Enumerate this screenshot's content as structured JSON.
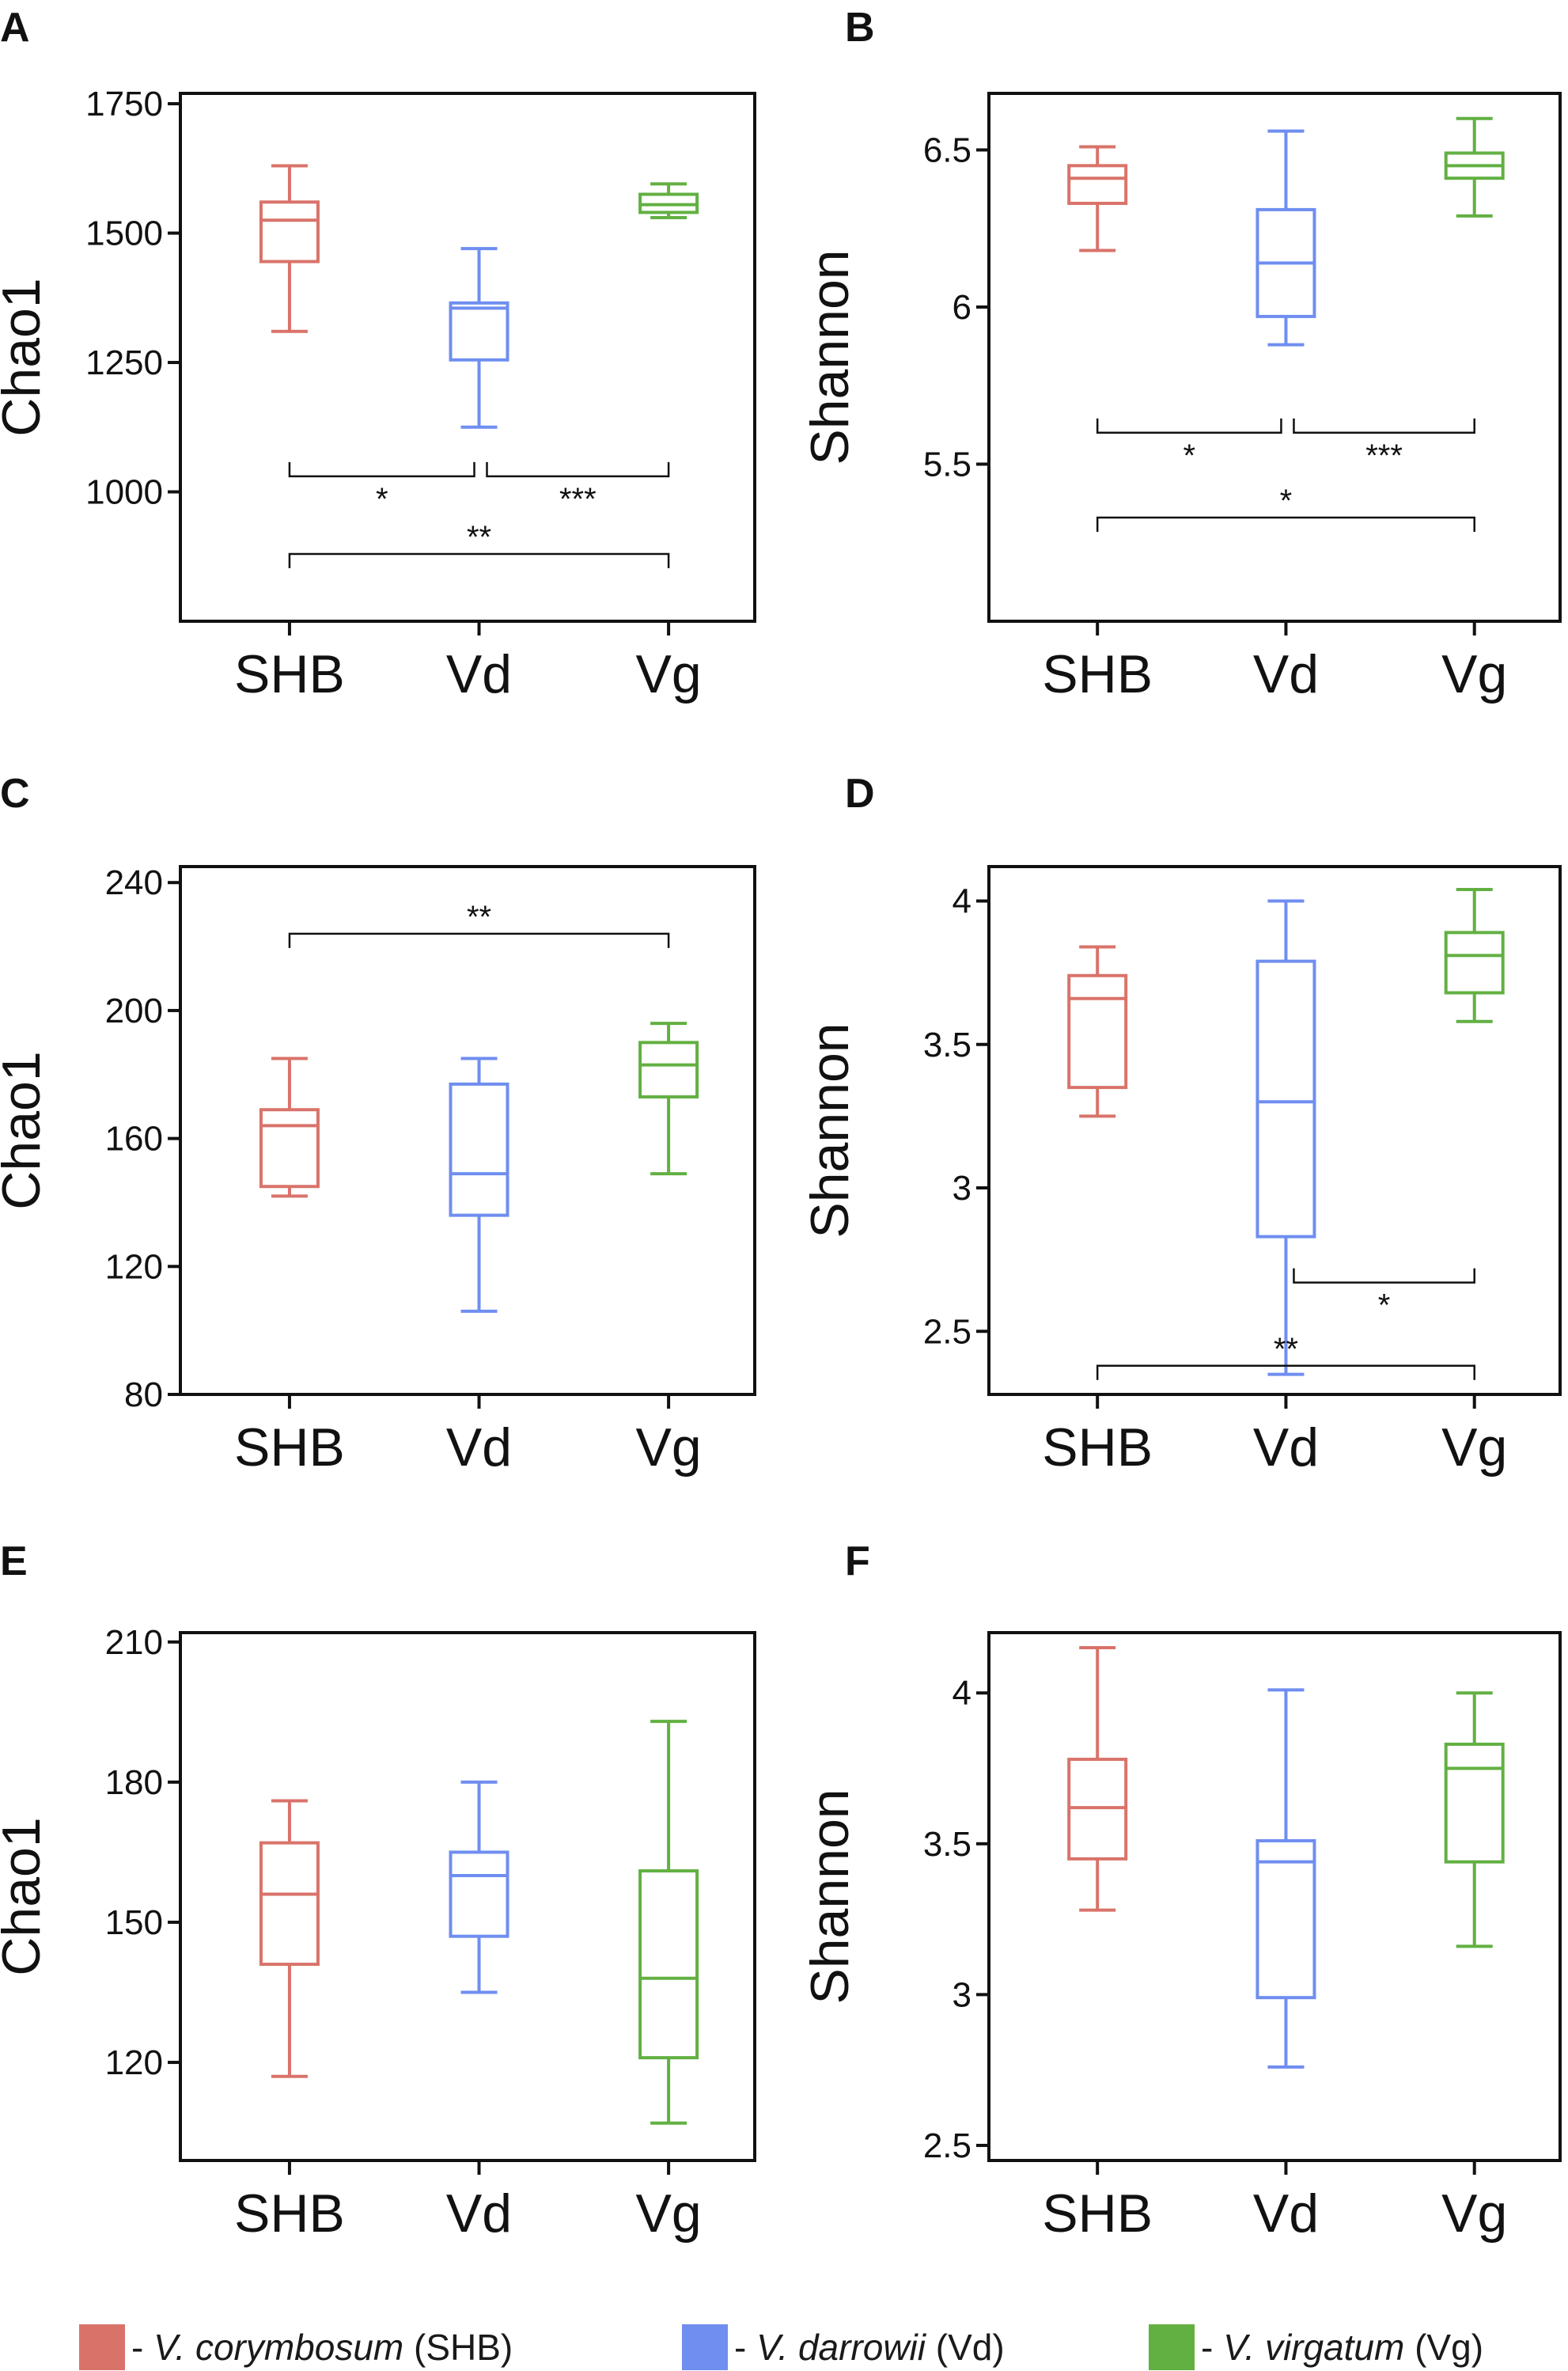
{
  "colors": {
    "SHB": "#d9736a",
    "Vd": "#6f8ef0",
    "Vg": "#62b042",
    "axis": "#111111"
  },
  "chart_data": [
    {
      "type": "box",
      "panel_label": "A",
      "ylabel": "Chao1",
      "categories": [
        "SHB",
        "Vd",
        "Vg"
      ],
      "ylim": [
        750,
        1770
      ],
      "yticks": [
        1000,
        1250,
        1500,
        1750
      ],
      "boxes": [
        {
          "group": "SHB",
          "whislo": 1310,
          "q1": 1445,
          "med": 1525,
          "q3": 1560,
          "whishi": 1630
        },
        {
          "group": "Vd",
          "whislo": 1125,
          "q1": 1255,
          "med": 1355,
          "q3": 1365,
          "whishi": 1470
        },
        {
          "group": "Vg",
          "whislo": 1530,
          "q1": 1540,
          "med": 1555,
          "q3": 1575,
          "whishi": 1595
        }
      ],
      "brackets": [
        {
          "from": 0,
          "to": 1,
          "y": 1030,
          "dir": "down",
          "label": "*"
        },
        {
          "from": 1,
          "to": 2,
          "y": 1030,
          "dir": "down",
          "label": "***"
        },
        {
          "from": 0,
          "to": 2,
          "y": 880,
          "dir": "up",
          "label": "**"
        }
      ]
    },
    {
      "type": "box",
      "panel_label": "B",
      "ylabel": "Shannon",
      "categories": [
        "SHB",
        "Vd",
        "Vg"
      ],
      "ylim": [
        5.0,
        6.68
      ],
      "yticks": [
        5.5,
        6.0,
        6.5
      ],
      "boxes": [
        {
          "group": "SHB",
          "whislo": 6.18,
          "q1": 6.33,
          "med": 6.41,
          "q3": 6.45,
          "whishi": 6.51
        },
        {
          "group": "Vd",
          "whislo": 5.88,
          "q1": 5.97,
          "med": 6.14,
          "q3": 6.31,
          "whishi": 6.56
        },
        {
          "group": "Vg",
          "whislo": 6.29,
          "q1": 6.41,
          "med": 6.45,
          "q3": 6.49,
          "whishi": 6.6
        }
      ],
      "brackets": [
        {
          "from": 0,
          "to": 1,
          "y": 5.6,
          "dir": "down",
          "label": "*"
        },
        {
          "from": 1,
          "to": 2,
          "y": 5.6,
          "dir": "down",
          "label": "***"
        },
        {
          "from": 0,
          "to": 2,
          "y": 5.33,
          "dir": "up",
          "label": "*"
        }
      ]
    },
    {
      "type": "box",
      "panel_label": "C",
      "ylabel": "Chao1",
      "categories": [
        "SHB",
        "Vd",
        "Vg"
      ],
      "ylim": [
        80,
        245
      ],
      "yticks": [
        80,
        120,
        160,
        200,
        240
      ],
      "boxes": [
        {
          "group": "SHB",
          "whislo": 142,
          "q1": 145,
          "med": 164,
          "q3": 169,
          "whishi": 185
        },
        {
          "group": "Vd",
          "whislo": 106,
          "q1": 136,
          "med": 149,
          "q3": 177,
          "whishi": 185
        },
        {
          "group": "Vg",
          "whislo": 149,
          "q1": 173,
          "med": 183,
          "q3": 190,
          "whishi": 196
        }
      ],
      "brackets": [
        {
          "from": 0,
          "to": 2,
          "y": 224,
          "dir": "up",
          "label": "**"
        }
      ]
    },
    {
      "type": "box",
      "panel_label": "D",
      "ylabel": "Shannon",
      "categories": [
        "SHB",
        "Vd",
        "Vg"
      ],
      "ylim": [
        2.28,
        4.12
      ],
      "yticks": [
        2.5,
        3.0,
        3.5,
        4.0
      ],
      "boxes": [
        {
          "group": "SHB",
          "whislo": 3.25,
          "q1": 3.35,
          "med": 3.66,
          "q3": 3.74,
          "whishi": 3.84
        },
        {
          "group": "Vd",
          "whislo": 2.35,
          "q1": 2.83,
          "med": 3.3,
          "q3": 3.79,
          "whishi": 4.0
        },
        {
          "group": "Vg",
          "whislo": 3.58,
          "q1": 3.68,
          "med": 3.81,
          "q3": 3.89,
          "whishi": 4.04
        }
      ],
      "brackets": [
        {
          "from": 1,
          "to": 2,
          "y": 2.67,
          "dir": "down",
          "label": "*"
        },
        {
          "from": 0,
          "to": 2,
          "y": 2.38,
          "dir": "up",
          "label": "**"
        }
      ]
    },
    {
      "type": "box",
      "panel_label": "E",
      "ylabel": "Chao1",
      "categories": [
        "SHB",
        "Vd",
        "Vg"
      ],
      "ylim": [
        99,
        212
      ],
      "yticks": [
        120,
        150,
        180,
        210
      ],
      "boxes": [
        {
          "group": "SHB",
          "whislo": 117,
          "q1": 141,
          "med": 156,
          "q3": 167,
          "whishi": 176
        },
        {
          "group": "Vd",
          "whislo": 135,
          "q1": 147,
          "med": 160,
          "q3": 165,
          "whishi": 180
        },
        {
          "group": "Vg",
          "whislo": 107,
          "q1": 121,
          "med": 138,
          "q3": 161,
          "whishi": 193
        }
      ],
      "brackets": []
    },
    {
      "type": "box",
      "panel_label": "F",
      "ylabel": "Shannon",
      "categories": [
        "SHB",
        "Vd",
        "Vg"
      ],
      "ylim": [
        2.45,
        4.2
      ],
      "yticks": [
        2.5,
        3.0,
        3.5,
        4.0
      ],
      "boxes": [
        {
          "group": "SHB",
          "whislo": 3.28,
          "q1": 3.45,
          "med": 3.62,
          "q3": 3.78,
          "whishi": 4.15
        },
        {
          "group": "Vd",
          "whislo": 2.76,
          "q1": 2.99,
          "med": 3.44,
          "q3": 3.51,
          "whishi": 4.01
        },
        {
          "group": "Vg",
          "whislo": 3.16,
          "q1": 3.44,
          "med": 3.75,
          "q3": 3.83,
          "whishi": 4.0
        }
      ],
      "brackets": []
    }
  ],
  "legend": [
    {
      "group": "SHB",
      "dash": "- ",
      "species": "V. corymbosum",
      "abbr": " (SHB)"
    },
    {
      "group": "Vd",
      "dash": "- ",
      "species": "V. darrowii",
      "abbr": " (Vd)"
    },
    {
      "group": "Vg",
      "dash": "- ",
      "species": "V. virgatum",
      "abbr": " (Vg)"
    }
  ]
}
